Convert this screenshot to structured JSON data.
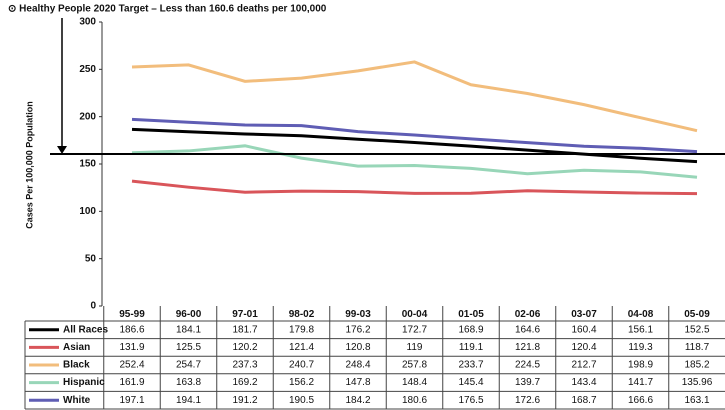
{
  "chart_data": {
    "type": "line",
    "title": "⊙ Healthy People 2020 Target – Less than 160.6 deaths per 100,000",
    "y_label": "Cases Per 100,000 Population",
    "target": 160.6,
    "categories": [
      "95-99",
      "96-00",
      "97-01",
      "98-02",
      "99-03",
      "00-04",
      "01-05",
      "02-06",
      "03-07",
      "04-08",
      "05-09"
    ],
    "series": [
      {
        "name": "All Races",
        "color": "#000000",
        "values": [
          186.6,
          184.1,
          181.7,
          179.8,
          176.2,
          172.7,
          168.9,
          164.6,
          160.4,
          156.1,
          152.5
        ]
      },
      {
        "name": "Asian",
        "color": "#d9555a",
        "values": [
          131.9,
          125.5,
          120.2,
          121.4,
          120.8,
          119,
          119.1,
          121.8,
          120.4,
          119.3,
          118.7
        ]
      },
      {
        "name": "Black",
        "color": "#f2bd7c",
        "values": [
          252.4,
          254.7,
          237.3,
          240.7,
          248.4,
          257.8,
          233.7,
          224.5,
          212.7,
          198.9,
          185.2
        ]
      },
      {
        "name": "Hispanic",
        "color": "#98d6b8",
        "values": [
          161.9,
          163.8,
          169.2,
          156.2,
          147.8,
          148.4,
          145.4,
          139.7,
          143.4,
          141.7,
          135.96
        ]
      },
      {
        "name": "White",
        "color": "#5f5db4",
        "values": [
          197.1,
          194.1,
          191.2,
          190.5,
          184.2,
          180.6,
          176.5,
          172.6,
          168.7,
          166.6,
          163.1
        ]
      }
    ],
    "ylim": [
      0,
      300
    ],
    "yticks": [
      0,
      50,
      100,
      150,
      200,
      250,
      300
    ]
  }
}
